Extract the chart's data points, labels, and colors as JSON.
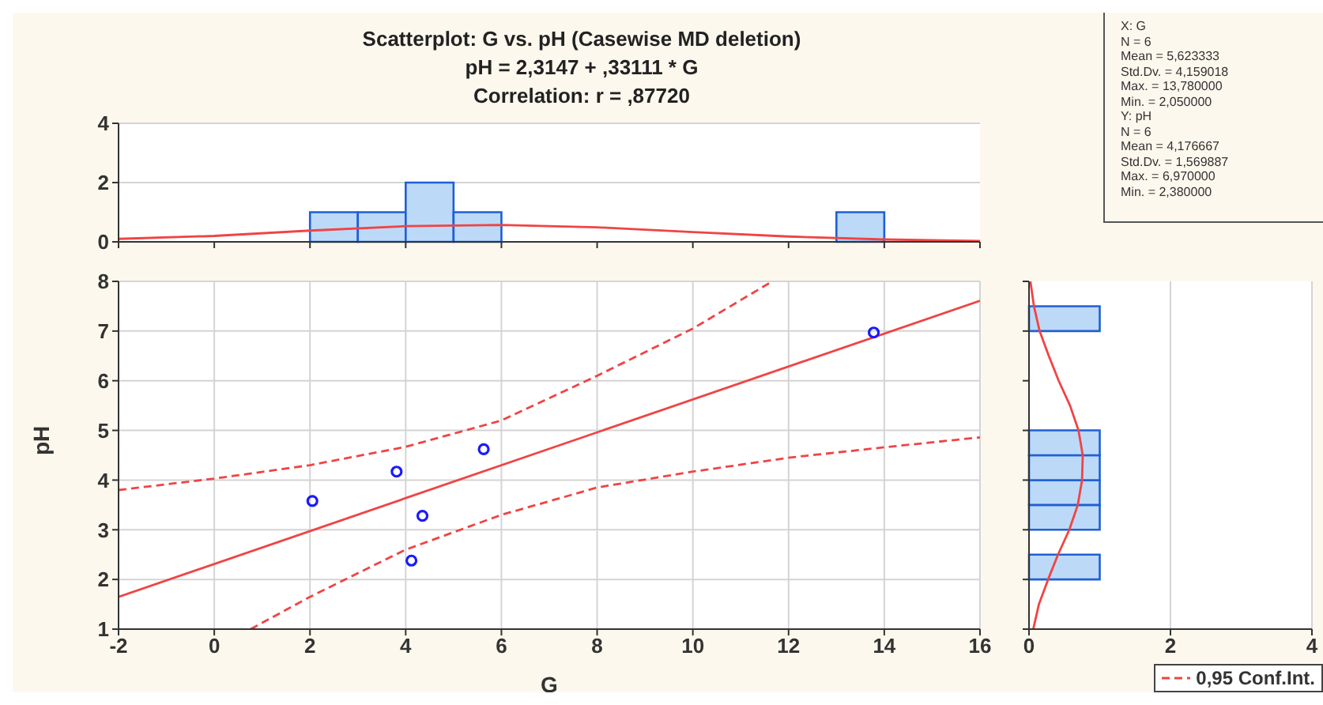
{
  "chart_data": [
    {
      "type": "histogram",
      "title": "Scatterplot: G vs. pH (Casewise MD deletion)",
      "subtitle": "pH = 2,3147 + ,33111 * G",
      "annotations": [
        "Correlation: r = ,87720"
      ],
      "xlim": [
        -2,
        16
      ],
      "xticks": [
        {
          "value": -2,
          "label": null
        },
        {
          "value": 0,
          "label": null
        },
        {
          "value": 2,
          "label": null
        },
        {
          "value": 4,
          "label": null
        },
        {
          "value": 6,
          "label": null
        },
        {
          "value": 8,
          "label": null
        },
        {
          "value": 10,
          "label": null
        },
        {
          "value": 12,
          "label": null
        },
        {
          "value": 14,
          "label": null
        },
        {
          "value": 16,
          "label": null
        }
      ],
      "ylim": [
        0,
        4
      ],
      "yticks": [
        0,
        2,
        4
      ],
      "grid": "y",
      "tick_labels": "y",
      "series": [
        {
          "type": "histogram",
          "color": "#bcdaf7",
          "bins": [
            2,
            3,
            4,
            5,
            6,
            7,
            8,
            9,
            10,
            11,
            12,
            13,
            14
          ],
          "values": [
            1,
            1,
            2,
            1,
            0,
            0,
            0,
            0,
            0,
            0,
            0,
            1
          ]
        },
        {
          "type": "line",
          "color": "#f04444",
          "x": [
            -2,
            0,
            2,
            4,
            6,
            8,
            10,
            12,
            14,
            16
          ],
          "values": [
            0.1,
            0.2,
            0.38,
            0.53,
            0.57,
            0.49,
            0.33,
            0.18,
            0.08,
            0.03
          ]
        }
      ]
    },
    {
      "type": "scatter",
      "xlabel": "G",
      "ylabel": "pH",
      "xlim": [
        -2,
        16
      ],
      "xticks": [
        -2,
        0,
        2,
        4,
        6,
        8,
        10,
        12,
        14,
        16
      ],
      "ylim": [
        1,
        8
      ],
      "yticks": [
        1,
        2,
        3,
        4,
        5,
        6,
        7,
        8
      ],
      "grid": true,
      "legend": "bottom right",
      "series": [
        {
          "type": "scatter",
          "marker": "circle",
          "color": "#1a1aff",
          "x": [
            2.05,
            3.81,
            5.63,
            4.35,
            4.12,
            13.78
          ],
          "values": [
            3.58,
            4.17,
            4.62,
            3.28,
            2.38,
            6.97
          ]
        },
        {
          "type": "line",
          "color": "#f04444",
          "line_style": "solid",
          "x": [
            -2,
            16
          ],
          "values": [
            1.65,
            7.61
          ]
        },
        {
          "type": "line",
          "name": "0,95 Conf.Int.",
          "color": "#f04444",
          "line_style": "dashed",
          "x": [
            -2,
            0,
            2,
            4,
            6,
            8,
            10,
            11.66
          ],
          "values": [
            3.8,
            4.03,
            4.3,
            4.67,
            5.2,
            6.1,
            7.05,
            8
          ]
        },
        {
          "type": "line",
          "color": "#f04444",
          "line_style": "dashed",
          "x": [
            0.76,
            2,
            4,
            6,
            8,
            10,
            12,
            14,
            16
          ],
          "values": [
            1,
            1.65,
            2.6,
            3.3,
            3.85,
            4.17,
            4.45,
            4.66,
            4.86
          ]
        }
      ]
    },
    {
      "type": "histogram",
      "orientation": "horizontal",
      "xlim": [
        0,
        4
      ],
      "xticks": [
        0,
        2,
        4
      ],
      "ylim": [
        1,
        8
      ],
      "yticks": [
        {
          "value": 1,
          "label": null
        },
        {
          "value": 2,
          "label": null
        },
        {
          "value": 3,
          "label": null
        },
        {
          "value": 4,
          "label": null
        },
        {
          "value": 5,
          "label": null
        },
        {
          "value": 6,
          "label": null
        },
        {
          "value": 7,
          "label": null
        },
        {
          "value": 8,
          "label": null
        }
      ],
      "grid": "x",
      "tick_labels": "x",
      "series": [
        {
          "type": "histogram",
          "color": "#bcdaf7",
          "bins": [
            1,
            1.5,
            2,
            2.5,
            3,
            3.5,
            4,
            4.5,
            5,
            5.5,
            6,
            6.5,
            7,
            7.5,
            8
          ],
          "values": [
            0,
            0,
            1,
            0,
            1,
            1,
            1,
            1,
            0,
            0,
            0,
            0,
            1,
            0
          ]
        },
        {
          "type": "line",
          "color": "#f04444",
          "x": [
            1,
            1.5,
            2,
            2.5,
            3,
            3.5,
            4,
            4.5,
            5,
            5.5,
            6,
            6.5,
            7,
            7.5,
            8
          ],
          "values": [
            0.06,
            0.14,
            0.27,
            0.41,
            0.57,
            0.69,
            0.75,
            0.76,
            0.7,
            0.58,
            0.42,
            0.28,
            0.15,
            0.07,
            0.02
          ]
        }
      ]
    },
    {
      "type": "other",
      "annotations": [
        "X: G",
        "N = 6",
        "Mean = 5,623333",
        "Std.Dv. = 4,159018",
        "Max. = 13,780000",
        "Min. = 2,050000",
        "Y: pH",
        "N = 6",
        "Mean = 4,176667",
        "Std.Dv. = 1,569887",
        "Max. = 6,970000",
        "Min. = 2,380000"
      ]
    }
  ]
}
